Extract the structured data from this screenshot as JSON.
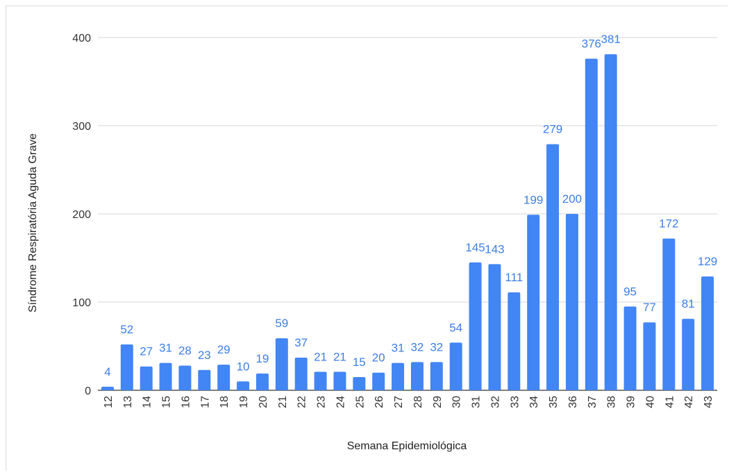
{
  "chart_data": {
    "type": "bar",
    "title": "",
    "xlabel": "Semana Epidemiológica",
    "ylabel": "Síndrome Respiratória Aguda Grave",
    "categories": [
      "12",
      "13",
      "14",
      "15",
      "16",
      "17",
      "18",
      "19",
      "20",
      "21",
      "22",
      "23",
      "24",
      "25",
      "26",
      "27",
      "28",
      "29",
      "30",
      "31",
      "32",
      "33",
      "34",
      "35",
      "36",
      "37",
      "38",
      "39",
      "40",
      "41",
      "42",
      "43"
    ],
    "series": [
      {
        "values": [
          4,
          52,
          27,
          31,
          28,
          23,
          29,
          10,
          19,
          59,
          37,
          21,
          21,
          15,
          20,
          31,
          32,
          32,
          54,
          145,
          143,
          111,
          199,
          279,
          200,
          376,
          381,
          95,
          77,
          172,
          81,
          129
        ]
      }
    ],
    "ylim": [
      0,
      400
    ],
    "yticks": [
      0,
      100,
      200,
      300,
      400
    ],
    "grid": true,
    "bar_color": "#4285f4",
    "label_color": "#3d7fe6"
  }
}
